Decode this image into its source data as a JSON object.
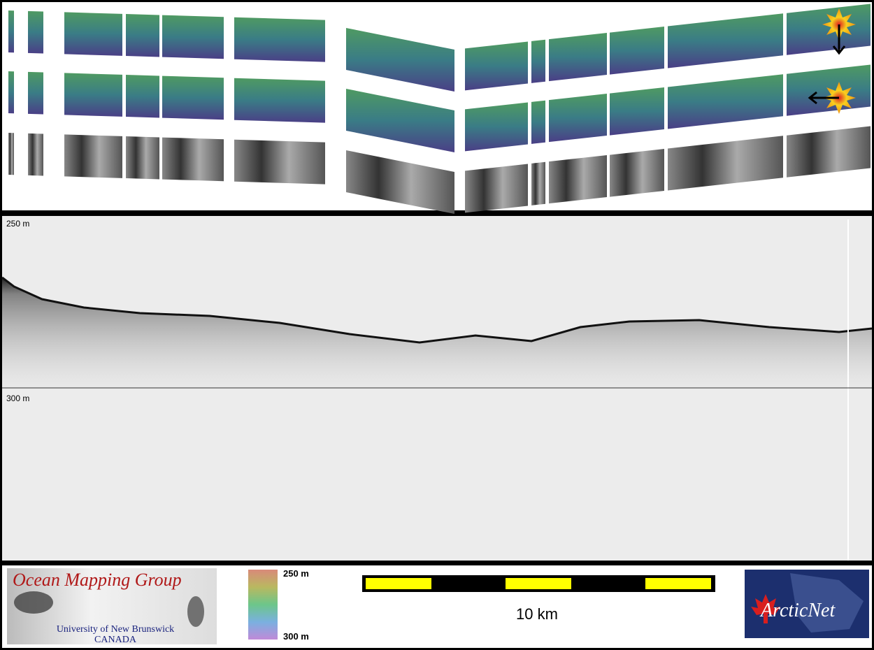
{
  "profile": {
    "depth_labels": [
      "250 m",
      "300 m"
    ]
  },
  "legend": {
    "colorbar": {
      "top": "250 m",
      "bottom": "300 m"
    },
    "scale_bar": {
      "label": "10 km"
    }
  },
  "logos": {
    "omg": {
      "title": "Ocean Mapping Group",
      "subtitle": "University of New Brunswick",
      "country": "CANADA"
    },
    "arcticnet": {
      "text": "ArcticNet"
    }
  }
}
